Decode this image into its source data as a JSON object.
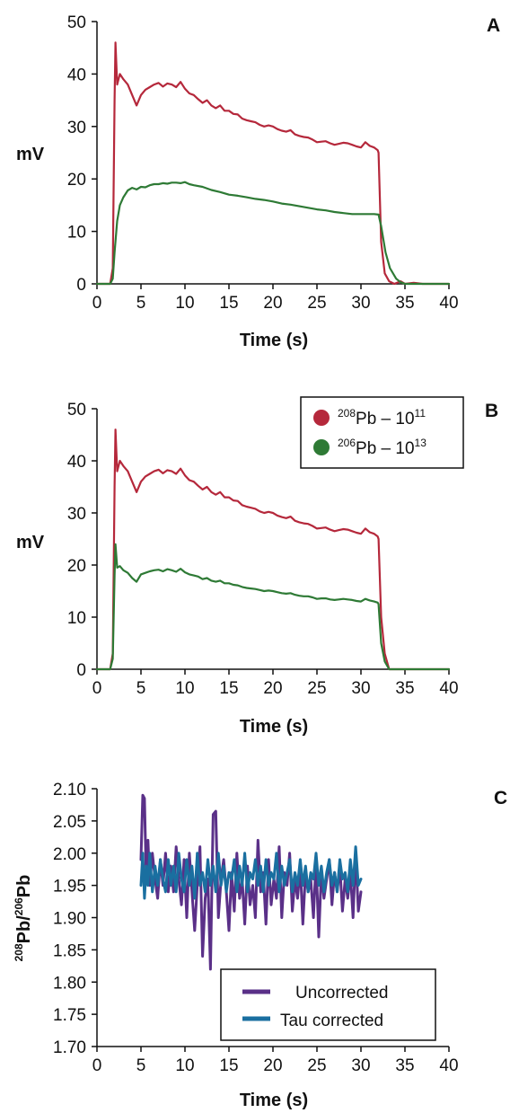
{
  "colors": {
    "pb208": "#b5283b",
    "pb206": "#2e7a35",
    "uncorrected": "#5a3088",
    "tau_corrected": "#1a6fa0",
    "axis": "#111111"
  },
  "chart_data": [
    {
      "panel": "A",
      "type": "line",
      "ylabel": "mV",
      "xlabel": "Time (s)",
      "xlim": [
        0,
        40
      ],
      "ylim": [
        0,
        50
      ],
      "xticks": [
        "0",
        "5",
        "10",
        "15",
        "20",
        "25",
        "30",
        "35",
        "40"
      ],
      "yticks": [
        "0",
        "10",
        "20",
        "30",
        "40",
        "50"
      ],
      "legend": null,
      "series": [
        {
          "key": "pb208",
          "x": [
            0,
            1.5,
            1.8,
            2.0,
            2.1,
            2.3,
            2.6,
            3,
            3.5,
            4,
            4.5,
            5,
            5.5,
            6,
            6.5,
            7,
            7.5,
            8,
            8.5,
            9,
            9.5,
            10,
            10.5,
            11,
            11.5,
            12,
            12.5,
            13,
            13.5,
            14,
            14.5,
            15,
            15.5,
            16,
            16.5,
            17,
            17.5,
            18,
            18.5,
            19,
            19.5,
            20,
            20.5,
            21,
            21.5,
            22,
            22.5,
            23,
            23.5,
            24,
            24.5,
            25,
            25.5,
            26,
            26.5,
            27,
            27.5,
            28,
            28.5,
            29,
            29.5,
            30,
            30.5,
            31,
            31.5,
            31.9,
            32.0,
            32.3,
            32.7,
            33.2,
            33.8,
            34.5,
            35,
            36,
            37,
            38,
            39,
            40
          ],
          "y": [
            0,
            0,
            3,
            35,
            46,
            38,
            40,
            39,
            38,
            36,
            34,
            36,
            37,
            37.5,
            38,
            38.3,
            37.6,
            38.2,
            38,
            37.5,
            38.5,
            37.2,
            36.3,
            36,
            35.2,
            34.5,
            35,
            34,
            33.5,
            34,
            33,
            33,
            32.4,
            32.3,
            31.5,
            31.2,
            31,
            30.8,
            30.3,
            30,
            30.2,
            30,
            29.5,
            29.2,
            29,
            29.3,
            28.5,
            28.2,
            28,
            27.9,
            27.5,
            27,
            27.1,
            27.2,
            26.8,
            26.5,
            26.7,
            26.9,
            26.8,
            26.5,
            26.2,
            26,
            27,
            26.3,
            26,
            25.5,
            25,
            8,
            2,
            0.5,
            0,
            0.5,
            0,
            0.2,
            0,
            0,
            0,
            0
          ]
        },
        {
          "key": "pb206",
          "x": [
            0,
            1.5,
            1.8,
            2.0,
            2.3,
            2.6,
            3,
            3.5,
            4,
            4.5,
            5,
            5.5,
            6,
            6.5,
            7,
            7.5,
            8,
            8.5,
            9,
            9.5,
            10,
            10.5,
            11,
            12,
            13,
            14,
            15,
            16,
            17,
            18,
            19,
            20,
            21,
            22,
            23,
            24,
            25,
            26,
            27,
            28,
            29,
            30,
            31,
            31.5,
            32.0,
            32.3,
            32.8,
            33.3,
            34,
            34.5,
            35,
            36,
            38,
            40
          ],
          "y": [
            0,
            0,
            1,
            6,
            12,
            15,
            16.5,
            17.8,
            18.3,
            18,
            18.5,
            18.4,
            18.8,
            19,
            19,
            19.2,
            19.1,
            19.3,
            19.3,
            19.2,
            19.4,
            19,
            18.8,
            18.5,
            17.9,
            17.5,
            17,
            16.8,
            16.5,
            16.2,
            16,
            15.7,
            15.3,
            15.1,
            14.8,
            14.5,
            14.2,
            14,
            13.7,
            13.5,
            13.3,
            13.3,
            13.3,
            13.3,
            13.2,
            11,
            6,
            3,
            1,
            0.3,
            0,
            0,
            0,
            0
          ]
        }
      ]
    },
    {
      "panel": "B",
      "type": "line",
      "ylabel": "mV",
      "xlabel": "Time (s)",
      "xlim": [
        0,
        40
      ],
      "ylim": [
        0,
        50
      ],
      "xticks": [
        "0",
        "5",
        "10",
        "15",
        "20",
        "25",
        "30",
        "35",
        "40"
      ],
      "yticks": [
        "0",
        "10",
        "20",
        "30",
        "40",
        "50"
      ],
      "legend": {
        "position": "top-right",
        "entries": [
          {
            "key": "pb208",
            "sup_mass": "208",
            "element": "Pb – 10",
            "sup_exp": "11"
          },
          {
            "key": "pb206",
            "sup_mass": "206",
            "element": "Pb – 10",
            "sup_exp": "13"
          }
        ]
      },
      "series": [
        {
          "key": "pb208",
          "x": [
            0,
            1.5,
            1.8,
            2.0,
            2.1,
            2.3,
            2.6,
            3,
            3.5,
            4,
            4.5,
            5,
            5.5,
            6,
            6.5,
            7,
            7.5,
            8,
            8.5,
            9,
            9.5,
            10,
            10.5,
            11,
            11.5,
            12,
            12.5,
            13,
            13.5,
            14,
            14.5,
            15,
            15.5,
            16,
            16.5,
            17,
            17.5,
            18,
            18.5,
            19,
            19.5,
            20,
            20.5,
            21,
            21.5,
            22,
            22.5,
            23,
            23.5,
            24,
            24.5,
            25,
            25.5,
            26,
            26.5,
            27,
            27.5,
            28,
            28.5,
            29,
            29.5,
            30,
            30.5,
            31,
            31.5,
            31.9,
            32.0,
            32.3,
            32.7,
            33.2,
            34,
            36,
            38,
            40
          ],
          "y": [
            0,
            0,
            3,
            35,
            46,
            38,
            40,
            39,
            38,
            36,
            34,
            36,
            37,
            37.5,
            38,
            38.3,
            37.6,
            38.2,
            38,
            37.5,
            38.5,
            37.2,
            36.3,
            36,
            35.2,
            34.5,
            35,
            34,
            33.5,
            34,
            33,
            33,
            32.4,
            32.3,
            31.5,
            31.2,
            31,
            30.8,
            30.3,
            30,
            30.2,
            30,
            29.5,
            29.2,
            29,
            29.3,
            28.5,
            28.2,
            28,
            27.9,
            27.5,
            27,
            27.1,
            27.2,
            26.8,
            26.5,
            26.7,
            26.9,
            26.8,
            26.5,
            26.2,
            26,
            27,
            26.3,
            26,
            25.5,
            25,
            10,
            3,
            0,
            0,
            0,
            0,
            0
          ]
        },
        {
          "key": "pb206",
          "x": [
            0,
            1.5,
            1.8,
            2.0,
            2.1,
            2.3,
            2.6,
            3,
            3.5,
            4,
            4.5,
            5,
            5.5,
            6,
            6.5,
            7,
            7.5,
            8,
            8.5,
            9,
            9.5,
            10,
            10.5,
            11,
            11.5,
            12,
            12.5,
            13,
            13.5,
            14,
            14.5,
            15,
            15.5,
            16,
            16.5,
            17,
            17.5,
            18,
            18.5,
            19,
            19.5,
            20,
            20.5,
            21,
            21.5,
            22,
            22.5,
            23,
            23.5,
            24,
            24.5,
            25,
            25.5,
            26,
            26.5,
            27,
            27.5,
            28,
            28.5,
            29,
            29.5,
            30,
            30.5,
            31,
            31.5,
            31.9,
            32.0,
            32.3,
            32.7,
            33.2,
            34,
            36,
            38,
            40
          ],
          "y": [
            0,
            0,
            2,
            18,
            24,
            19.5,
            19.8,
            19,
            18.5,
            17.5,
            16.8,
            18.2,
            18.5,
            18.8,
            19,
            19.1,
            18.8,
            19.2,
            19,
            18.7,
            19.3,
            18.6,
            18.2,
            18,
            17.8,
            17.3,
            17.5,
            17,
            16.8,
            17,
            16.5,
            16.5,
            16.2,
            16.1,
            15.8,
            15.6,
            15.5,
            15.4,
            15.2,
            15,
            15.1,
            15,
            14.8,
            14.6,
            14.5,
            14.6,
            14.3,
            14.1,
            14,
            14,
            13.8,
            13.5,
            13.6,
            13.6,
            13.4,
            13.3,
            13.4,
            13.5,
            13.4,
            13.3,
            13.1,
            13,
            13.5,
            13.2,
            13,
            12.8,
            12.5,
            5,
            1.5,
            0,
            0,
            0,
            0,
            0
          ]
        }
      ]
    },
    {
      "panel": "C",
      "type": "line",
      "ylabel_sup1": "208",
      "ylabel_mid": "Pb/",
      "ylabel_sup2": "206",
      "ylabel_end": "Pb",
      "xlabel": "Time (s)",
      "xlim": [
        0,
        40
      ],
      "ylim": [
        1.7,
        2.1
      ],
      "xticks": [
        "0",
        "5",
        "10",
        "15",
        "20",
        "25",
        "30",
        "35",
        "40"
      ],
      "yticks": [
        "1.70",
        "1.75",
        "1.80",
        "1.85",
        "1.90",
        "1.95",
        "2.00",
        "2.05",
        "2.10"
      ],
      "legend": {
        "position": "bottom-right",
        "entries": [
          {
            "key": "uncorrected",
            "label": "Uncorrected"
          },
          {
            "key": "tau_corrected",
            "label": "Tau corrected"
          }
        ]
      },
      "series": [
        {
          "key": "uncorrected",
          "x": [
            5.0,
            5.2,
            5.4,
            5.6,
            5.8,
            6.0,
            6.3,
            6.6,
            6.9,
            7.2,
            7.5,
            7.8,
            8.1,
            8.4,
            8.7,
            9.0,
            9.3,
            9.6,
            9.9,
            10.2,
            10.5,
            10.8,
            11.1,
            11.4,
            11.7,
            12.0,
            12.3,
            12.6,
            12.9,
            13.2,
            13.5,
            13.8,
            14.1,
            14.4,
            14.7,
            15.0,
            15.3,
            15.6,
            15.9,
            16.2,
            16.5,
            16.8,
            17.1,
            17.4,
            17.7,
            18.0,
            18.3,
            18.6,
            18.9,
            19.2,
            19.5,
            19.8,
            20.1,
            20.4,
            20.7,
            21.0,
            21.3,
            21.6,
            21.9,
            22.2,
            22.5,
            22.8,
            23.1,
            23.4,
            23.7,
            24.0,
            24.3,
            24.6,
            24.9,
            25.2,
            25.5,
            25.8,
            26.1,
            26.4,
            26.7,
            27.0,
            27.3,
            27.6,
            27.9,
            28.2,
            28.5,
            28.8,
            29.1,
            29.4,
            29.7,
            30.0
          ],
          "y": [
            1.99,
            2.09,
            2.085,
            1.96,
            2.02,
            1.95,
            2.0,
            1.96,
            1.93,
            1.99,
            1.95,
            2.0,
            1.94,
            1.98,
            1.94,
            2.01,
            1.96,
            1.92,
            1.99,
            1.9,
            2.0,
            1.94,
            1.88,
            1.95,
            2.01,
            1.84,
            1.93,
            1.96,
            1.82,
            2.06,
            2.065,
            1.9,
            1.96,
            1.99,
            1.94,
            1.88,
            1.97,
            1.91,
            2.0,
            1.93,
            1.96,
            1.89,
            1.98,
            1.92,
            1.95,
            1.9,
            2.02,
            1.94,
            1.97,
            1.89,
            1.99,
            1.92,
            1.96,
            1.93,
            2.01,
            1.9,
            1.97,
            1.95,
            2.0,
            1.91,
            1.96,
            1.93,
            1.98,
            1.89,
            1.97,
            1.94,
            1.96,
            1.9,
            1.99,
            1.87,
            1.97,
            1.93,
            1.96,
            1.99,
            1.92,
            1.97,
            1.94,
            1.98,
            1.91,
            1.96,
            1.93,
            1.97,
            1.9,
            2.0,
            1.91,
            1.94
          ]
        },
        {
          "key": "tau_corrected",
          "x": [
            5.0,
            5.2,
            5.4,
            5.6,
            5.8,
            6.0,
            6.3,
            6.6,
            6.9,
            7.2,
            7.5,
            7.8,
            8.1,
            8.4,
            8.7,
            9.0,
            9.3,
            9.6,
            9.9,
            10.2,
            10.5,
            10.8,
            11.1,
            11.4,
            11.7,
            12.0,
            12.3,
            12.6,
            12.9,
            13.2,
            13.5,
            13.8,
            14.1,
            14.4,
            14.7,
            15.0,
            15.3,
            15.6,
            15.9,
            16.2,
            16.5,
            16.8,
            17.1,
            17.4,
            17.7,
            18.0,
            18.3,
            18.6,
            18.9,
            19.2,
            19.5,
            19.8,
            20.1,
            20.4,
            20.7,
            21.0,
            21.3,
            21.6,
            21.9,
            22.2,
            22.5,
            22.8,
            23.1,
            23.4,
            23.7,
            24.0,
            24.3,
            24.6,
            24.9,
            25.2,
            25.5,
            25.8,
            26.1,
            26.4,
            26.7,
            27.0,
            27.3,
            27.6,
            27.9,
            28.2,
            28.5,
            28.8,
            29.1,
            29.4,
            29.7,
            30.0
          ],
          "y": [
            1.95,
            2.0,
            1.93,
            1.98,
            1.95,
            2.0,
            1.94,
            1.98,
            1.95,
            1.99,
            1.96,
            1.94,
            1.99,
            1.95,
            1.98,
            1.94,
            2.0,
            1.96,
            1.94,
            1.99,
            1.95,
            1.98,
            1.93,
            2.0,
            1.95,
            1.97,
            1.94,
            1.99,
            1.95,
            1.98,
            1.94,
            2.0,
            1.95,
            1.98,
            1.94,
            1.97,
            1.96,
            1.99,
            1.94,
            1.98,
            1.95,
            2.0,
            1.94,
            1.97,
            1.96,
            1.99,
            1.95,
            1.98,
            1.94,
            1.99,
            1.95,
            1.97,
            1.96,
            2.0,
            1.94,
            1.98,
            1.95,
            1.97,
            1.99,
            1.94,
            1.97,
            1.95,
            1.99,
            1.95,
            1.98,
            1.94,
            1.97,
            1.96,
            2.0,
            1.95,
            1.98,
            1.94,
            1.97,
            1.99,
            1.95,
            1.97,
            1.94,
            1.99,
            1.96,
            1.97,
            1.94,
            1.99,
            1.95,
            2.01,
            1.95,
            1.96
          ]
        }
      ]
    }
  ]
}
